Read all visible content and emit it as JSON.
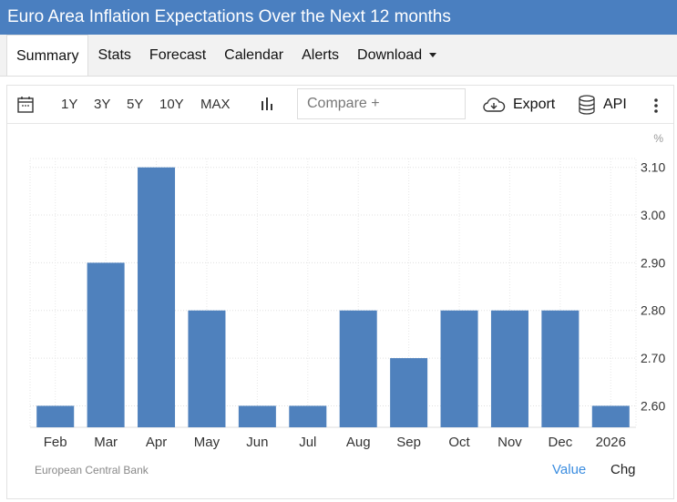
{
  "header": {
    "title": "Euro Area Inflation Expectations Over the Next 12 months"
  },
  "tabs": [
    {
      "label": "Summary"
    },
    {
      "label": "Stats"
    },
    {
      "label": "Forecast"
    },
    {
      "label": "Calendar"
    },
    {
      "label": "Alerts"
    },
    {
      "label": "Download"
    }
  ],
  "toolbar": {
    "ranges": [
      "1Y",
      "3Y",
      "5Y",
      "10Y",
      "MAX"
    ],
    "compare_placeholder": "Compare +",
    "export": "Export",
    "api": "API"
  },
  "footer": {
    "source": "European Central Bank",
    "value_label": "Value",
    "chg_label": "Chg"
  },
  "colors": {
    "bar": "#4f81bd",
    "accent": "#4a7fc0",
    "link": "#3b8de0"
  },
  "chart_data": {
    "type": "bar",
    "unit": "%",
    "categories": [
      "Feb",
      "Mar",
      "Apr",
      "May",
      "Jun",
      "Jul",
      "Aug",
      "Sep",
      "Oct",
      "Nov",
      "Dec",
      "2026"
    ],
    "values": [
      2.6,
      2.9,
      3.1,
      2.8,
      2.6,
      2.6,
      2.8,
      2.7,
      2.8,
      2.8,
      2.8,
      2.6
    ],
    "yticks": [
      "3.10",
      "3.00",
      "2.90",
      "2.80",
      "2.70",
      "2.60"
    ],
    "ylim": [
      2.555,
      3.13
    ],
    "grid": true
  }
}
